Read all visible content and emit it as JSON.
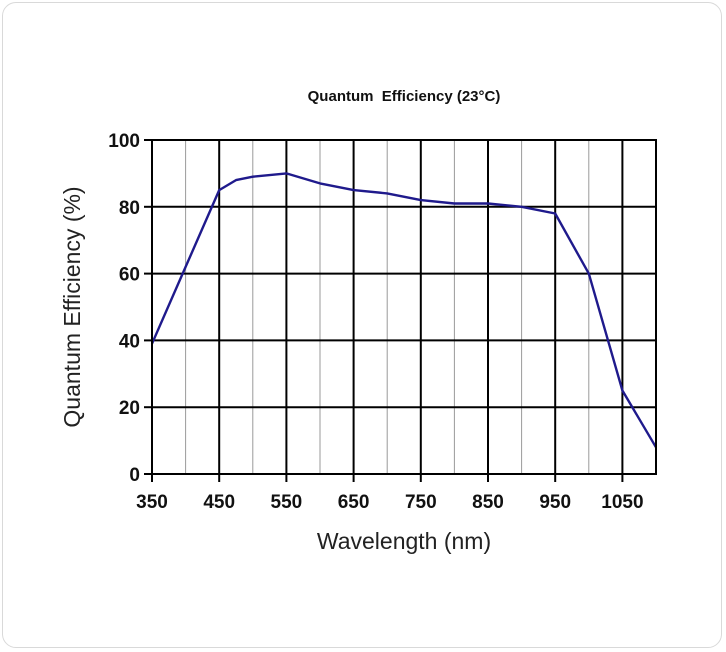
{
  "chart_data": {
    "type": "line",
    "title": "Quantum  Efficiency (23°C)",
    "xlabel": "Wavelength (nm)",
    "ylabel": "Quantum Efficiency (%)",
    "xlim": [
      350,
      1100
    ],
    "ylim": [
      0,
      100
    ],
    "xticks": [
      350,
      450,
      550,
      650,
      750,
      850,
      950,
      1050
    ],
    "yticks": [
      0,
      20,
      40,
      60,
      80,
      100
    ],
    "x_gridlines": [
      400,
      500,
      600,
      700,
      800,
      900,
      1000
    ],
    "grid": true,
    "series": [
      {
        "color": "#1f1a8c",
        "x": [
          350,
          400,
          450,
          475,
          500,
          550,
          600,
          650,
          700,
          750,
          800,
          850,
          900,
          950,
          1000,
          1050,
          1100
        ],
        "y": [
          39,
          62,
          85,
          88,
          89,
          90,
          87,
          85,
          84,
          82,
          81,
          81,
          80,
          78,
          60,
          25,
          8
        ]
      }
    ]
  }
}
